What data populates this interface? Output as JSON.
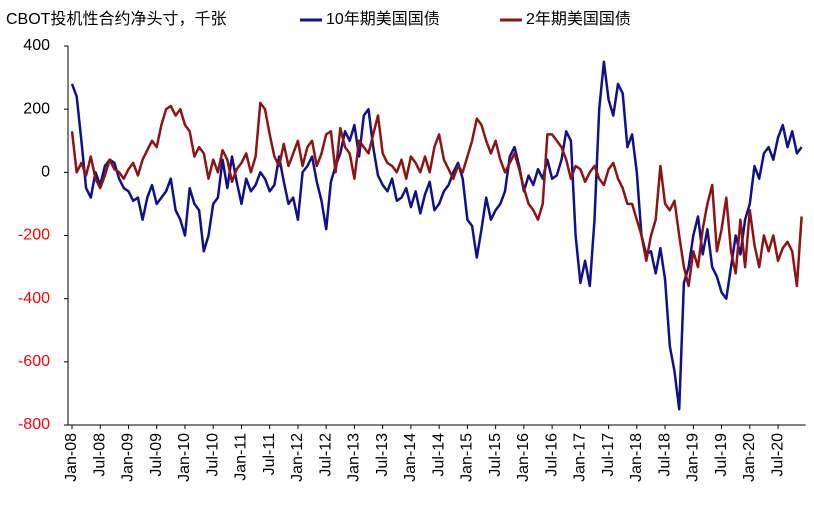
{
  "chart_data": {
    "type": "line",
    "title": "CBOT投机性合约净头寸，千张",
    "categories": [
      "Jan-08",
      null,
      null,
      null,
      null,
      null,
      "Jul-08",
      null,
      null,
      null,
      null,
      null,
      "Jan-09",
      null,
      null,
      null,
      null,
      null,
      "Jul-09",
      null,
      null,
      null,
      null,
      null,
      "Jan-10",
      null,
      null,
      null,
      null,
      null,
      "Jul-10",
      null,
      null,
      null,
      null,
      null,
      "Jan-11",
      null,
      null,
      null,
      null,
      null,
      "Jul-11",
      null,
      null,
      null,
      null,
      null,
      "Jan-12",
      null,
      null,
      null,
      null,
      null,
      "Jul-12",
      null,
      null,
      null,
      null,
      null,
      "Jan-13",
      null,
      null,
      null,
      null,
      null,
      "Jul-13",
      null,
      null,
      null,
      null,
      null,
      "Jan-14",
      null,
      null,
      null,
      null,
      null,
      "Jul-14",
      null,
      null,
      null,
      null,
      null,
      "Jan-15",
      null,
      null,
      null,
      null,
      null,
      "Jul-15",
      null,
      null,
      null,
      null,
      null,
      "Jan-16",
      null,
      null,
      null,
      null,
      null,
      "Jul-16",
      null,
      null,
      null,
      null,
      null,
      "Jan-17",
      null,
      null,
      null,
      null,
      null,
      "Jul-17",
      null,
      null,
      null,
      null,
      null,
      "Jan-18",
      null,
      null,
      null,
      null,
      null,
      "Jul-18",
      null,
      null,
      null,
      null,
      null,
      "Jan-19",
      null,
      null,
      null,
      null,
      null,
      "Jul-19",
      null,
      null,
      null,
      null,
      null,
      "Jan-20",
      null,
      null,
      null,
      null,
      null,
      "Jul-20",
      null,
      null,
      null,
      null,
      null
    ],
    "series": [
      {
        "name": "10年期美国国债",
        "color": "#10108c",
        "values": [
          280,
          240,
          100,
          -50,
          -80,
          0,
          -40,
          20,
          40,
          30,
          -20,
          -50,
          -60,
          -90,
          -80,
          -150,
          -80,
          -40,
          -100,
          -80,
          -60,
          -20,
          -120,
          -150,
          -200,
          -50,
          -100,
          -120,
          -250,
          -200,
          -100,
          -80,
          40,
          -50,
          50,
          -30,
          -100,
          -20,
          -60,
          -40,
          0,
          -20,
          -60,
          -40,
          50,
          -30,
          -100,
          -80,
          -150,
          0,
          20,
          50,
          -30,
          -90,
          -180,
          -30,
          20,
          60,
          130,
          100,
          150,
          50,
          180,
          200,
          80,
          -10,
          -40,
          -60,
          -20,
          -90,
          -80,
          -50,
          -110,
          -60,
          -130,
          -70,
          -30,
          -120,
          -100,
          -60,
          -40,
          0,
          30,
          -20,
          -150,
          -170,
          -270,
          -180,
          -80,
          -150,
          -120,
          -100,
          -60,
          50,
          80,
          20,
          -60,
          -10,
          -40,
          10,
          -20,
          40,
          -20,
          -10,
          40,
          130,
          100,
          -200,
          -350,
          -280,
          -360,
          -150,
          200,
          350,
          230,
          180,
          280,
          250,
          80,
          120,
          0,
          -200,
          -260,
          -250,
          -320,
          -240,
          -340,
          -550,
          -630,
          -750,
          -350,
          -300,
          -200,
          -140,
          -260,
          -180,
          -300,
          -330,
          -380,
          -400,
          -300,
          -200,
          -260,
          -150,
          -100,
          20,
          -20,
          60,
          80,
          40,
          110,
          150,
          80,
          130,
          60,
          80
        ]
      },
      {
        "name": "2年期美国国债",
        "color": "#8c1414",
        "values": [
          130,
          0,
          30,
          -10,
          50,
          -20,
          -50,
          -10,
          40,
          10,
          0,
          -20,
          10,
          30,
          -10,
          40,
          70,
          100,
          80,
          150,
          200,
          210,
          180,
          200,
          150,
          130,
          50,
          80,
          60,
          -20,
          40,
          0,
          70,
          40,
          -30,
          10,
          30,
          60,
          0,
          50,
          220,
          200,
          120,
          50,
          20,
          90,
          20,
          60,
          100,
          20,
          80,
          100,
          20,
          60,
          120,
          130,
          0,
          140,
          80,
          60,
          -20,
          100,
          80,
          60,
          120,
          180,
          60,
          30,
          20,
          0,
          40,
          -20,
          50,
          30,
          0,
          50,
          0,
          80,
          120,
          40,
          10,
          -20,
          20,
          0,
          50,
          100,
          170,
          150,
          100,
          60,
          100,
          40,
          0,
          30,
          60,
          10,
          -50,
          -100,
          -120,
          -150,
          -100,
          120,
          120,
          100,
          80,
          40,
          -20,
          20,
          10,
          -30,
          0,
          20,
          -20,
          -40,
          10,
          30,
          -20,
          -50,
          -100,
          -100,
          -150,
          -200,
          -280,
          -200,
          -150,
          20,
          -100,
          -120,
          -90,
          -200,
          -300,
          -360,
          -250,
          -300,
          -180,
          -100,
          -40,
          -250,
          -180,
          -80,
          -250,
          -320,
          -150,
          -300,
          -120,
          -230,
          -300,
          -200,
          -250,
          -200,
          -280,
          -240,
          -220,
          -250,
          -360,
          -140
        ]
      }
    ],
    "ylim": [
      -800,
      400
    ],
    "yticks": [
      -800,
      -600,
      -400,
      -200,
      0,
      200,
      400
    ],
    "negative_tick_color": "#ff0000"
  }
}
